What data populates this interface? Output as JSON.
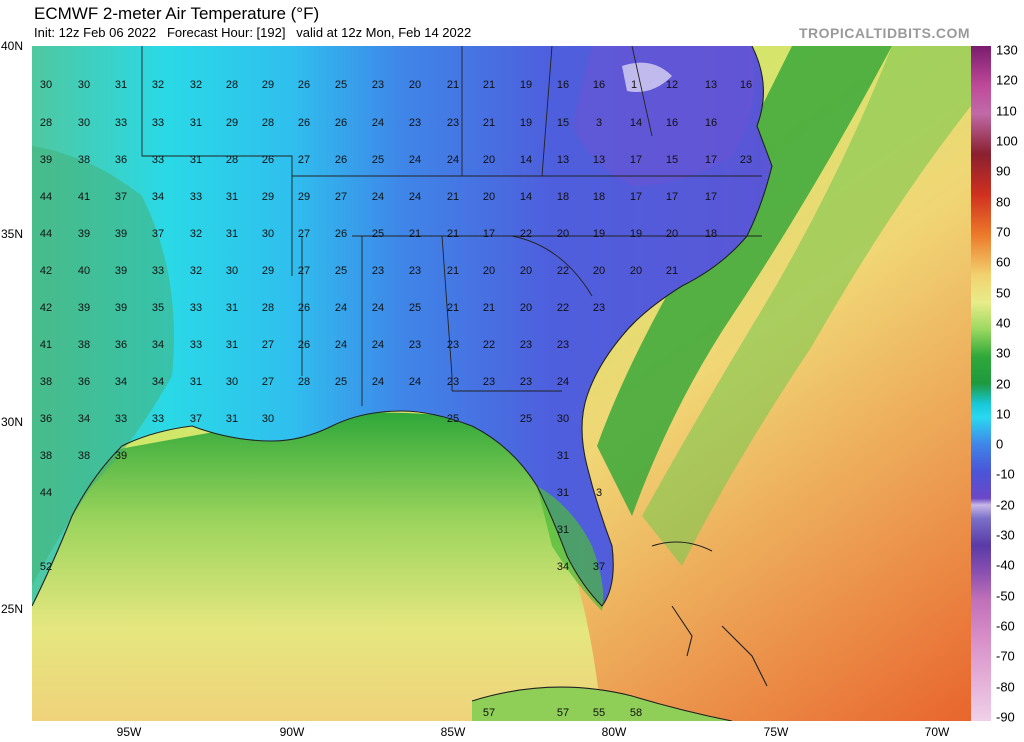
{
  "header": {
    "title": "ECMWF 2-meter Air Temperature (°F)",
    "subtitle": "Init: 12z Feb 06 2022   Forecast Hour: [192]   valid at 12z Mon, Feb 14 2022",
    "brand": "TROPICALTIDBITS.COM"
  },
  "axes": {
    "lat_labels": [
      "40N",
      "35N",
      "30N",
      "25N"
    ],
    "lon_labels": [
      "95W",
      "90W",
      "85W",
      "80W",
      "75W",
      "70W"
    ]
  },
  "colorbar": {
    "labels": [
      "130",
      "120",
      "110",
      "100",
      "90",
      "80",
      "70",
      "60",
      "50",
      "40",
      "30",
      "20",
      "10",
      "0",
      "-10",
      "-20",
      "-30",
      "-40",
      "-50",
      "-60",
      "-70",
      "-80",
      "-90"
    ]
  },
  "colors": {
    "cold_blue": "#4f5fe0",
    "freezing_cyan": "#1ed8f5",
    "mild_green": "#2fa83a",
    "warm_yellow": "#efe27a",
    "hot_orange": "#ea6a30"
  },
  "station_values": [
    "30",
    "30",
    "31",
    "32",
    "32",
    "28",
    "29",
    "26",
    "25",
    "23",
    "20",
    "21",
    "21",
    "19",
    "16",
    "16",
    "1",
    "12",
    "13",
    "16",
    "28",
    "30",
    "33",
    "33",
    "31",
    "29",
    "28",
    "26",
    "26",
    "24",
    "23",
    "23",
    "21",
    "19",
    "15",
    "3",
    "14",
    "16",
    "16",
    "39",
    "38",
    "36",
    "33",
    "31",
    "28",
    "26",
    "27",
    "26",
    "25",
    "24",
    "24",
    "20",
    "14",
    "13",
    "13",
    "17",
    "15",
    "17",
    "23",
    "44",
    "41",
    "37",
    "34",
    "33",
    "31",
    "29",
    "29",
    "27",
    "24",
    "24",
    "21",
    "20",
    "14",
    "18",
    "18",
    "17",
    "17",
    "17",
    "44",
    "39",
    "39",
    "37",
    "32",
    "31",
    "30",
    "27",
    "26",
    "25",
    "21",
    "21",
    "17",
    "22",
    "20",
    "19",
    "19",
    "20",
    "18",
    "42",
    "40",
    "39",
    "33",
    "32",
    "30",
    "29",
    "27",
    "25",
    "23",
    "23",
    "21",
    "20",
    "20",
    "22",
    "20",
    "20",
    "21",
    "42",
    "39",
    "39",
    "35",
    "33",
    "31",
    "28",
    "26",
    "24",
    "24",
    "25",
    "21",
    "21",
    "20",
    "22",
    "23",
    "41",
    "38",
    "36",
    "34",
    "33",
    "31",
    "27",
    "26",
    "24",
    "24",
    "23",
    "23",
    "22",
    "23",
    "23",
    "38",
    "36",
    "34",
    "34",
    "31",
    "30",
    "27",
    "28",
    "25",
    "24",
    "24",
    "23",
    "23",
    "23",
    "24",
    "36",
    "34",
    "33",
    "33",
    "37",
    "31",
    "30",
    "25",
    "25",
    "30",
    "38",
    "38",
    "39",
    "31",
    "44",
    "31",
    "3",
    "31",
    "52",
    "34",
    "37",
    "57",
    "57",
    "55",
    "58"
  ]
}
